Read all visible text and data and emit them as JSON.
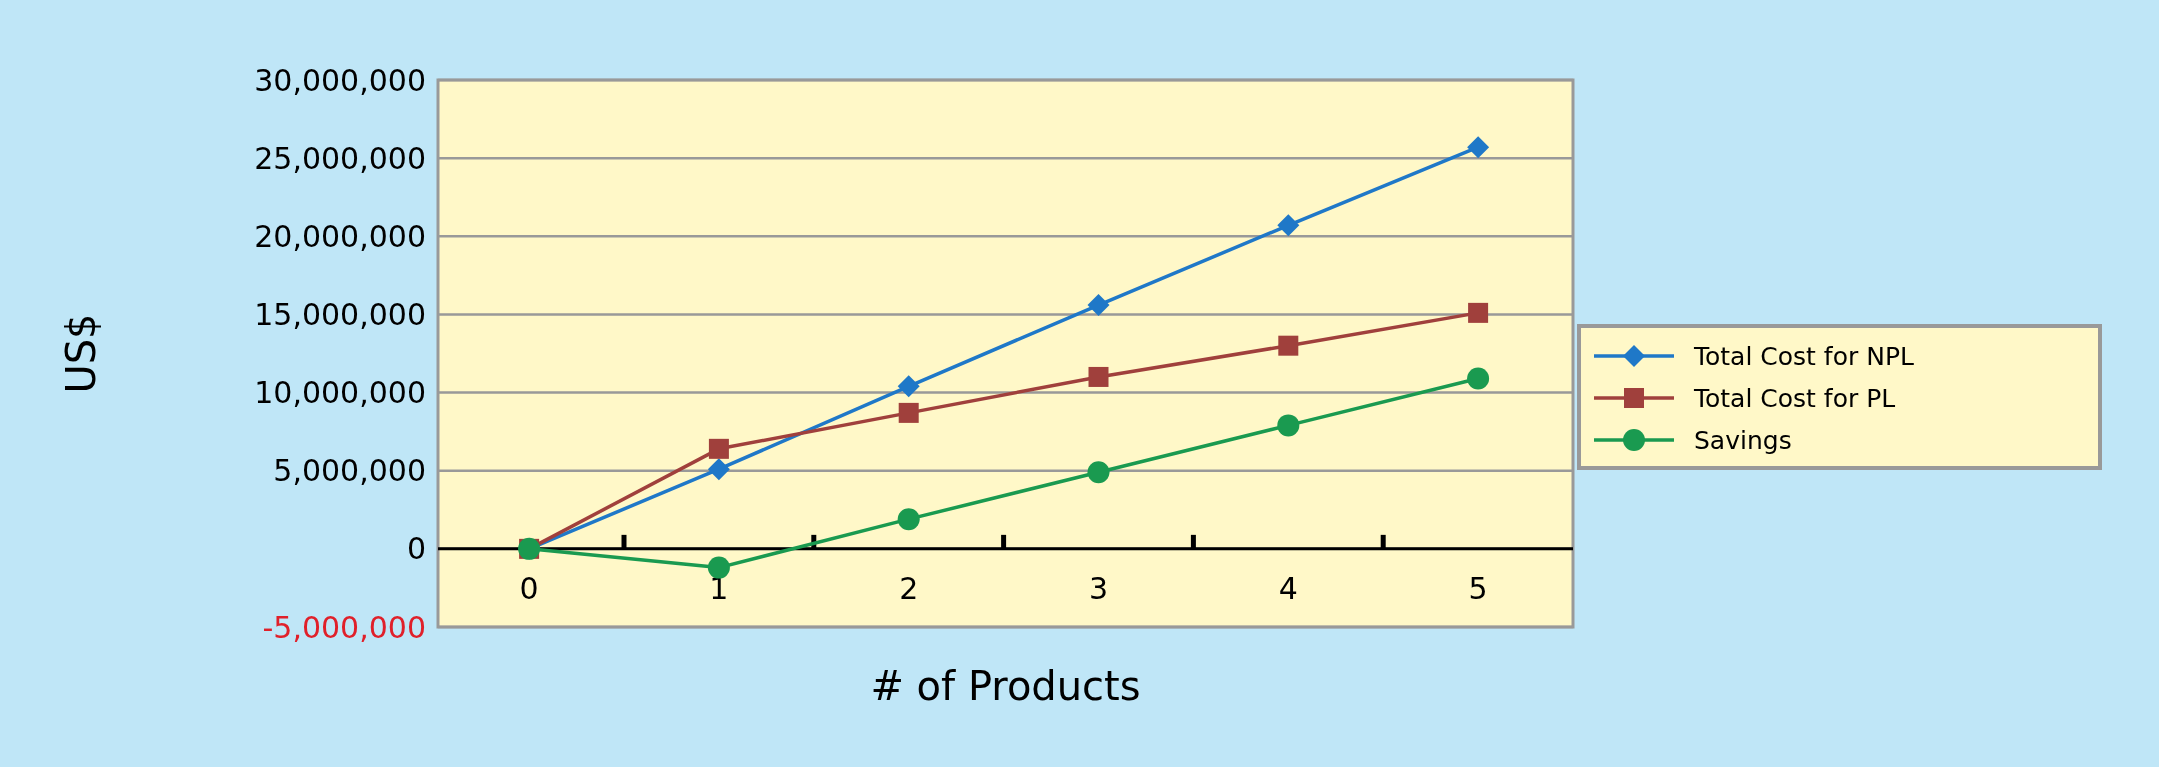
{
  "chart_data": {
    "type": "line",
    "xlabel": "# of Products",
    "ylabel": "US$",
    "categories": [
      "0",
      "1",
      "2",
      "3",
      "4",
      "5"
    ],
    "series": [
      {
        "name": "Total Cost for NPL",
        "color": "#1f78c8",
        "marker": "diamond",
        "values": [
          0,
          5100000,
          10400000,
          15600000,
          20700000,
          25700000
        ]
      },
      {
        "name": "Total Cost for PL",
        "color": "#a0403c",
        "marker": "square",
        "values": [
          0,
          6400000,
          8700000,
          11000000,
          13000000,
          15100000
        ]
      },
      {
        "name": "Savings",
        "color": "#1a9a50",
        "marker": "circle",
        "values": [
          0,
          -1200000,
          1900000,
          4900000,
          7900000,
          10900000
        ]
      }
    ],
    "ylim": [
      -5000000,
      30000000
    ],
    "yticks": [
      {
        "value": -5000000,
        "label": "-5,000,000"
      },
      {
        "value": 0,
        "label": "0"
      },
      {
        "value": 5000000,
        "label": "5,000,000"
      },
      {
        "value": 10000000,
        "label": "10,000,000"
      },
      {
        "value": 15000000,
        "label": "15,000,000"
      },
      {
        "value": 20000000,
        "label": "20,000,000"
      },
      {
        "value": 25000000,
        "label": "25,000,000"
      },
      {
        "value": 30000000,
        "label": "30,000,000"
      }
    ],
    "grid": "y",
    "legend": "right",
    "line_style": "solid"
  }
}
